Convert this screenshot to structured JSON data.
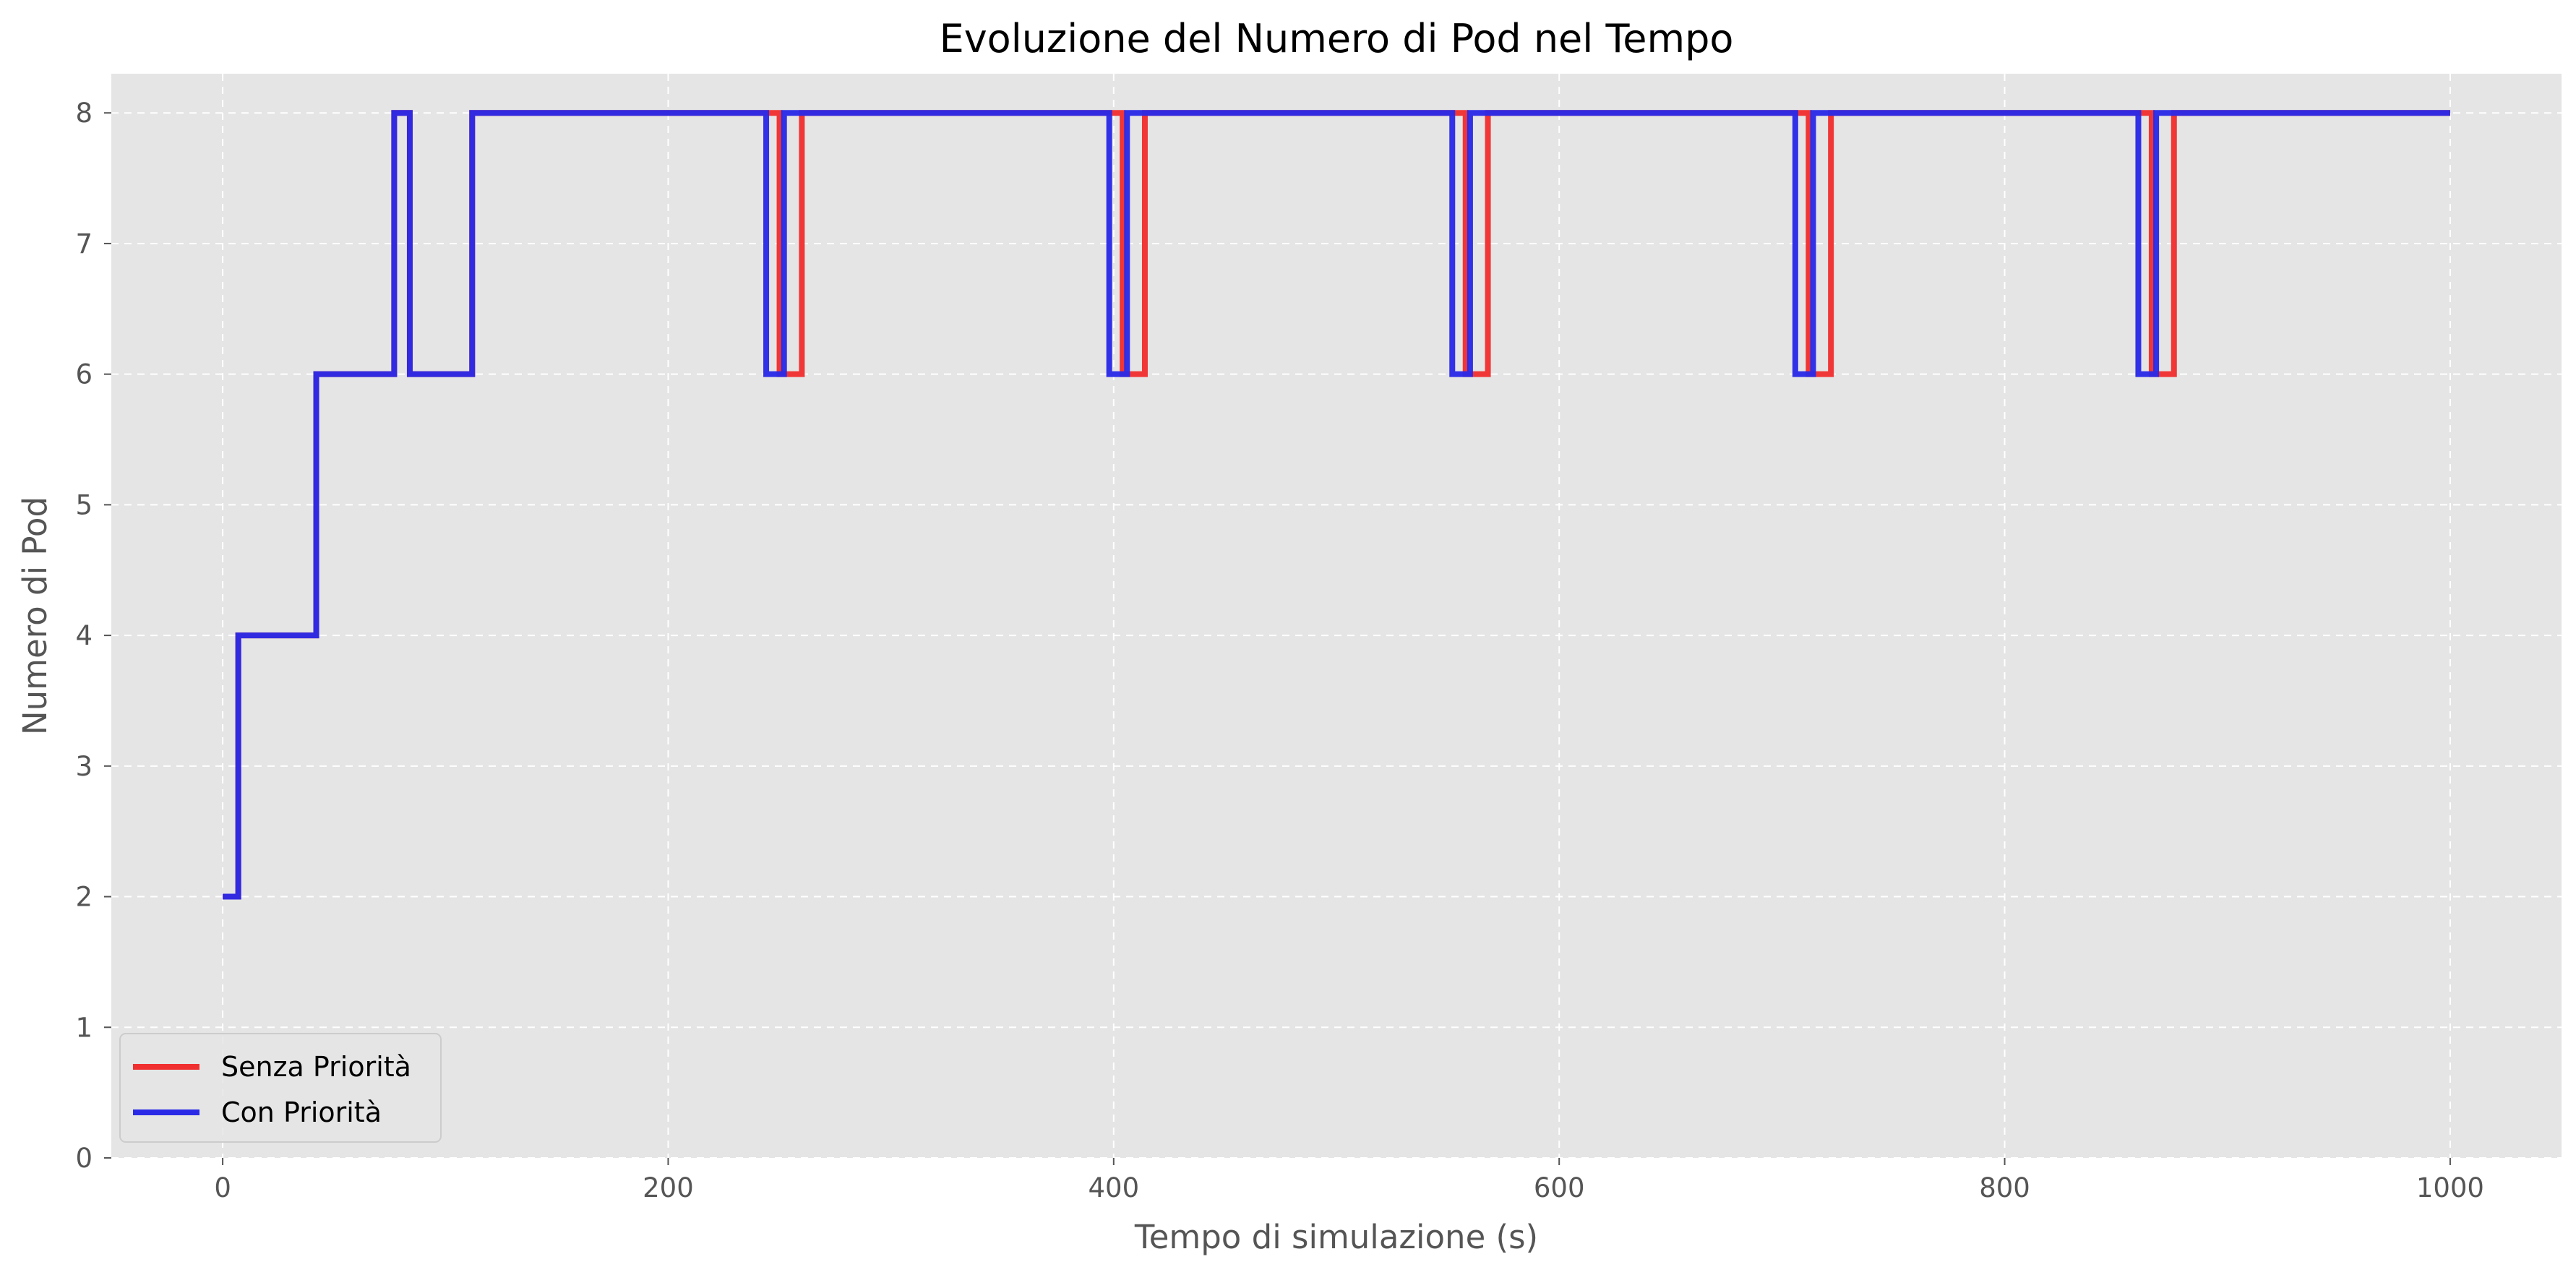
{
  "chart_data": {
    "type": "line",
    "title": "Evoluzione del Numero di Pod nel Tempo",
    "xlabel": "Tempo di simulazione (s)",
    "ylabel": "Numero di Pod",
    "xlim": [
      -50,
      1050
    ],
    "ylim": [
      0,
      8.3
    ],
    "xticks": [
      0,
      200,
      400,
      600,
      800,
      1000
    ],
    "yticks": [
      0,
      1,
      2,
      3,
      4,
      5,
      6,
      7,
      8
    ],
    "grid": true,
    "legend_position": "lower-left",
    "background_color": "#e5e5e5",
    "grid_color": "#ffffff",
    "series": [
      {
        "name": "Senza Priorità",
        "color": "#f03030",
        "step": "post",
        "x": [
          0,
          7,
          42,
          77,
          84,
          112,
          250,
          256,
          260,
          404,
          410,
          414,
          558,
          564,
          568,
          712,
          718,
          722,
          866,
          872,
          876,
          1000
        ],
        "y": [
          2,
          4,
          6,
          8,
          6,
          8,
          6,
          6,
          8,
          6,
          6,
          8,
          6,
          6,
          8,
          6,
          6,
          8,
          6,
          6,
          8,
          8
        ]
      },
      {
        "name": "Con Priorità",
        "color": "#2a2ae6",
        "step": "post",
        "x": [
          0,
          7,
          42,
          77,
          84,
          112,
          244,
          252,
          398,
          406,
          552,
          560,
          706,
          714,
          860,
          868,
          1000
        ],
        "y": [
          2,
          4,
          6,
          8,
          6,
          8,
          6,
          8,
          6,
          8,
          6,
          8,
          6,
          8,
          6,
          8,
          8
        ]
      }
    ]
  }
}
